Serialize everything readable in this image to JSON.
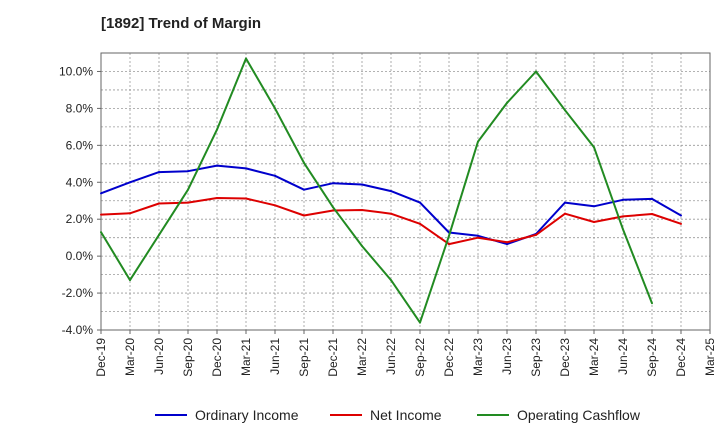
{
  "chart_data": {
    "type": "line",
    "title": "[1892]  Trend of Margin",
    "xlabel": "",
    "ylabel": "",
    "x": [
      "Dec-19",
      "Mar-20",
      "Jun-20",
      "Sep-20",
      "Dec-20",
      "Mar-21",
      "Jun-21",
      "Sep-21",
      "Dec-21",
      "Mar-22",
      "Jun-22",
      "Sep-22",
      "Dec-22",
      "Mar-23",
      "Jun-23",
      "Sep-23",
      "Dec-23",
      "Mar-24",
      "Jun-24",
      "Sep-24",
      "Dec-24",
      "Mar-25"
    ],
    "ylim": [
      -4.0,
      11.0
    ],
    "yticks": [
      -4.0,
      -2.0,
      0.0,
      2.0,
      4.0,
      6.0,
      8.0,
      10.0
    ],
    "ytick_labels": [
      "-4.0%",
      "-2.0%",
      "0.0%",
      "2.0%",
      "4.0%",
      "6.0%",
      "8.0%",
      "10.0%"
    ],
    "grid": true,
    "legend_position": "bottom",
    "series": [
      {
        "name": "Ordinary Income",
        "color": "#0000cc",
        "values": [
          3.4,
          4.0,
          4.55,
          4.6,
          4.9,
          4.75,
          4.35,
          3.6,
          3.95,
          3.88,
          3.52,
          2.9,
          1.28,
          1.1,
          0.65,
          1.2,
          2.9,
          2.7,
          3.05,
          3.1,
          2.2,
          null
        ]
      },
      {
        "name": "Net Income",
        "color": "#dd0000",
        "values": [
          2.25,
          2.32,
          2.85,
          2.9,
          3.15,
          3.12,
          2.75,
          2.2,
          2.47,
          2.5,
          2.3,
          1.75,
          0.65,
          1.0,
          0.75,
          1.15,
          2.3,
          1.85,
          2.15,
          2.28,
          1.75,
          null
        ]
      },
      {
        "name": "Operating Cashflow",
        "color": "#228b22",
        "values": [
          1.3,
          -1.3,
          1.15,
          3.6,
          6.85,
          10.7,
          8.0,
          5.05,
          2.65,
          0.55,
          -1.3,
          -3.6,
          1.1,
          6.2,
          8.3,
          10.0,
          7.9,
          5.9,
          1.45,
          -2.55,
          null,
          null
        ]
      }
    ]
  }
}
